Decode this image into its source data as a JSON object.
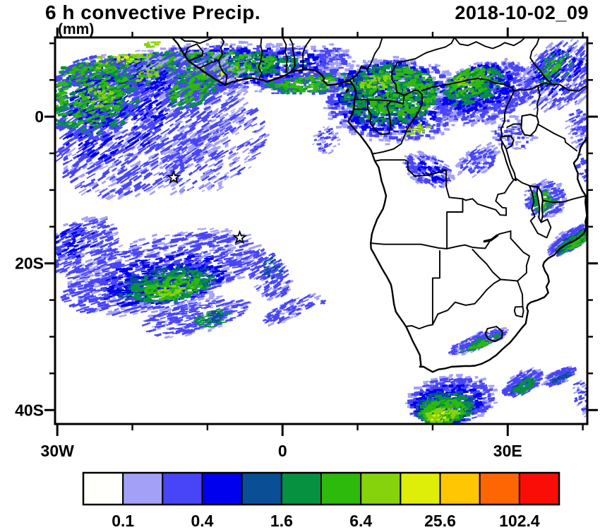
{
  "header": {
    "title": "6 h convective Precip.",
    "units": "(mm)",
    "datetime": "2018-10-02_09"
  },
  "map": {
    "x_axis": {
      "tick_labels": [
        "30W",
        "0",
        "30E"
      ],
      "major_lons": [
        -30,
        0,
        30
      ],
      "minor_lons": [
        -20,
        -10,
        10,
        20,
        40
      ]
    },
    "y_axis": {
      "tick_labels": [
        "0",
        "20S",
        "40S"
      ],
      "major_lats": [
        0,
        -20,
        -40
      ],
      "minor_lats": [
        10,
        5,
        -5,
        -10,
        -15,
        -25,
        -30,
        -35
      ]
    },
    "extent": {
      "lon_min": -30.3,
      "lon_max": 40.6,
      "lat_min": -41.9,
      "lat_max": 10.8
    },
    "markers": [
      {
        "type": "star",
        "lon": -14.5,
        "lat": -8.3
      },
      {
        "type": "star",
        "lon": -5.7,
        "lat": -16.5
      }
    ]
  },
  "colorbar": {
    "labels": [
      "0.1",
      "0.4",
      "1.6",
      "6.4",
      "25.6",
      "102.4"
    ],
    "levels": [
      0.1,
      0.2,
      0.4,
      0.8,
      1.6,
      3.2,
      6.4,
      12.8,
      25.6,
      51.2,
      102.4
    ],
    "colors": [
      "#fffffc",
      "#a3a1f7",
      "#4845f8",
      "#0000ee",
      "#0a4f96",
      "#069140",
      "#2eb90d",
      "#87d30b",
      "#dfee08",
      "#ffc603",
      "#fd6603",
      "#fa0d06"
    ]
  },
  "chart_data": {
    "type": "heatmap",
    "title": "6 h convective Precip.",
    "units": "mm",
    "time": "2018-10-02_09",
    "legend_position": "bottom",
    "region_format": [
      "center_lon",
      "center_lat",
      "radius_lon_deg",
      "radius_lat_deg",
      "streak_angle_deg",
      "color_level_index",
      "speck_count",
      "speck_w_px",
      "speck_h_px"
    ],
    "regions": [
      [
        -10.5,
        6.4,
        20,
        3.6,
        -3,
        1,
        600,
        6,
        3
      ],
      [
        -11,
        6.3,
        19.5,
        3.1,
        -3,
        2,
        700,
        7,
        3.5
      ],
      [
        -12,
        6.5,
        18,
        2.6,
        -3,
        3,
        450,
        6,
        3.5
      ],
      [
        -13,
        6.6,
        17,
        2.2,
        -3,
        4,
        280,
        6,
        3.5
      ],
      [
        -13.5,
        6.8,
        16,
        2.0,
        -2,
        5,
        380,
        6,
        3.5
      ],
      [
        -14.5,
        7.0,
        14,
        1.7,
        -2,
        6,
        300,
        6,
        3.5
      ],
      [
        -20.5,
        7.4,
        5.5,
        1.2,
        -2,
        7,
        100,
        5,
        3
      ],
      [
        -21.5,
        7.6,
        2,
        0.55,
        0,
        8,
        15,
        4,
        3
      ],
      [
        -8.5,
        6.1,
        3,
        0.9,
        0,
        7,
        40,
        5,
        3
      ],
      [
        -8.8,
        6.0,
        1.2,
        0.45,
        0,
        8,
        8,
        4,
        2.5
      ],
      [
        5,
        4.6,
        8,
        1.5,
        -4,
        2,
        240,
        6,
        3
      ],
      [
        5,
        4.6,
        7.5,
        1.2,
        -4,
        5,
        170,
        6,
        3
      ],
      [
        5.5,
        4.6,
        6.5,
        1.0,
        -4,
        6,
        130,
        6,
        3
      ],
      [
        8.5,
        4.4,
        1.6,
        0.6,
        0,
        7,
        24,
        4,
        3
      ],
      [
        8.8,
        4.3,
        0.8,
        0.35,
        0,
        8,
        6,
        4,
        2.5
      ],
      [
        6.5,
        8,
        2.5,
        1.8,
        0,
        1,
        70,
        5,
        3
      ],
      [
        6.6,
        8,
        2.2,
        1.5,
        0,
        2,
        50,
        5,
        3
      ],
      [
        -17,
        -1.0,
        13.5,
        8.5,
        -32,
        1,
        700,
        9,
        2.6
      ],
      [
        -18,
        -1.0,
        13,
        8,
        -32,
        2,
        850,
        11,
        2.6
      ],
      [
        -22,
        0.8,
        8,
        6,
        -32,
        3,
        240,
        9,
        2.6
      ],
      [
        -26,
        1.8,
        4.5,
        4.5,
        -32,
        5,
        55,
        5,
        2.5
      ],
      [
        -9,
        -4.5,
        8,
        4.5,
        -32,
        2,
        200,
        10,
        2.4
      ],
      [
        -9,
        -4.5,
        8.5,
        5,
        -32,
        1,
        170,
        8,
        2.4
      ],
      [
        5.8,
        -3.2,
        1.8,
        1.8,
        -20,
        1,
        45,
        5,
        2.5
      ],
      [
        5.8,
        -3.2,
        1.5,
        1.5,
        -20,
        2,
        28,
        5,
        2.5
      ],
      [
        -25,
        2.5,
        6.5,
        5.5,
        -20,
        2,
        380,
        8,
        3
      ],
      [
        -24.5,
        2,
        4,
        3.5,
        -20,
        3,
        140,
        7,
        3
      ],
      [
        -25,
        2.5,
        6,
        5,
        -20,
        5,
        240,
        7,
        3
      ],
      [
        -25.5,
        3,
        5,
        4.2,
        -20,
        6,
        190,
        7,
        3
      ],
      [
        -24,
        3,
        2.2,
        1.5,
        -20,
        7,
        40,
        5,
        3
      ],
      [
        -12,
        3.5,
        4,
        2.5,
        -25,
        2,
        190,
        7,
        3
      ],
      [
        -12,
        3.5,
        3.6,
        2.2,
        -25,
        5,
        115,
        6,
        3
      ],
      [
        -12.3,
        3.8,
        3,
        1.8,
        -25,
        6,
        75,
        6,
        3
      ],
      [
        -17,
        9.7,
        1.5,
        0.8,
        0,
        7,
        16,
        5,
        3
      ],
      [
        -18,
        5.5,
        1.5,
        0.8,
        -20,
        7,
        22,
        5,
        3
      ],
      [
        15,
        2.2,
        9.5,
        6,
        0,
        1,
        520,
        6,
        4
      ],
      [
        15,
        2.2,
        9,
        5.5,
        0,
        2,
        600,
        6,
        4
      ],
      [
        14.5,
        2.6,
        7.5,
        4.8,
        0,
        3,
        380,
        6,
        4
      ],
      [
        14,
        3.0,
        6.5,
        4.2,
        0,
        4,
        240,
        6,
        4
      ],
      [
        14.5,
        3.1,
        6.2,
        4.0,
        0,
        5,
        340,
        6,
        4
      ],
      [
        15.5,
        3.4,
        5,
        3.2,
        0,
        6,
        220,
        6,
        4
      ],
      [
        12.5,
        4.6,
        2.2,
        1.2,
        0,
        7,
        42,
        5,
        3
      ],
      [
        18,
        -1.7,
        1.8,
        0.5,
        -15,
        7,
        26,
        5,
        3
      ],
      [
        17.5,
        -1.6,
        0.9,
        0.35,
        0,
        8,
        7,
        4,
        2.5
      ],
      [
        17.2,
        -1.55,
        0.4,
        0.2,
        0,
        10,
        3,
        4,
        2.5
      ],
      [
        19.5,
        -7.3,
        3.5,
        2.2,
        25,
        1,
        150,
        6,
        3
      ],
      [
        19.5,
        -7.3,
        3.2,
        2.0,
        25,
        2,
        120,
        6,
        3
      ],
      [
        20,
        -7.5,
        2,
        1.2,
        25,
        3,
        40,
        6,
        3
      ],
      [
        26,
        -6,
        3,
        2,
        -30,
        1,
        95,
        6,
        3
      ],
      [
        26,
        -6,
        2.5,
        1.8,
        -30,
        2,
        75,
        6,
        3
      ],
      [
        27,
        3.2,
        7,
        4.2,
        -18,
        1,
        400,
        6,
        3.5
      ],
      [
        27,
        3.2,
        6.5,
        3.8,
        -18,
        2,
        480,
        6,
        3.5
      ],
      [
        26,
        3.8,
        5,
        3,
        -18,
        3,
        240,
        6,
        3.5
      ],
      [
        25.5,
        4.2,
        4,
        2.4,
        -18,
        5,
        185,
        6,
        3.5
      ],
      [
        25,
        4.6,
        3,
        1.8,
        -18,
        6,
        100,
        6,
        3.5
      ],
      [
        24.5,
        5.2,
        1.6,
        0.9,
        -18,
        7,
        20,
        5,
        3
      ],
      [
        37,
        5.5,
        5.5,
        4.5,
        -40,
        1,
        280,
        7,
        2.6
      ],
      [
        37,
        5.5,
        5,
        4,
        -40,
        2,
        320,
        8,
        2.6
      ],
      [
        36.5,
        6.2,
        3.5,
        2.6,
        -40,
        3,
        85,
        7,
        2.6
      ],
      [
        36.2,
        6.6,
        2.5,
        1.8,
        -40,
        5,
        65,
        5,
        2.6
      ],
      [
        36,
        6.8,
        1.6,
        1.1,
        -40,
        6,
        32,
        5,
        2.6
      ],
      [
        40,
        -2,
        1.8,
        3.2,
        -25,
        1,
        85,
        6,
        2.6
      ],
      [
        40.2,
        -2,
        1.5,
        3,
        -25,
        2,
        75,
        6,
        2.6
      ],
      [
        40.3,
        -7,
        1,
        2,
        -25,
        2,
        42,
        6,
        2.6
      ],
      [
        31,
        -2.2,
        3,
        2.4,
        0,
        1,
        85,
        5,
        3
      ],
      [
        31,
        -2.2,
        2.6,
        2,
        0,
        2,
        60,
        5,
        3
      ],
      [
        35,
        -11.3,
        2.8,
        2.6,
        -20,
        1,
        140,
        6,
        3
      ],
      [
        35,
        -11.3,
        2.5,
        2.3,
        -20,
        2,
        150,
        6,
        3
      ],
      [
        34.8,
        -11.3,
        1.6,
        1.6,
        -20,
        5,
        65,
        6,
        3
      ],
      [
        34.7,
        -11.2,
        1,
        1,
        -20,
        6,
        28,
        5,
        3
      ],
      [
        38.5,
        -16.6,
        3.8,
        1.4,
        -32,
        1,
        130,
        7,
        2.6
      ],
      [
        38.6,
        -16.7,
        3.5,
        1.2,
        -32,
        2,
        200,
        8,
        2.6
      ],
      [
        38.8,
        -16.9,
        2.8,
        0.8,
        -32,
        4,
        65,
        7,
        2.6
      ],
      [
        38.9,
        -17.0,
        2.6,
        0.7,
        -32,
        5,
        85,
        7,
        2.6
      ],
      [
        39.2,
        -17.2,
        1.4,
        0.45,
        -32,
        6,
        28,
        6,
        2.6
      ],
      [
        -16,
        -21.3,
        13.5,
        5.2,
        -14,
        1,
        580,
        8,
        2.6
      ],
      [
        -16.5,
        -21.4,
        13,
        4.7,
        -14,
        2,
        750,
        10,
        2.6
      ],
      [
        -16,
        -22.3,
        8.5,
        3.2,
        -10,
        3,
        340,
        8,
        2.8
      ],
      [
        -15.5,
        -22.8,
        6.5,
        2.4,
        -10,
        4,
        185,
        7,
        2.8
      ],
      [
        -15,
        -23.1,
        5.8,
        2.1,
        -10,
        5,
        240,
        7,
        3
      ],
      [
        -14.6,
        -23.4,
        3.8,
        1.5,
        -10,
        6,
        130,
        6,
        3
      ],
      [
        -14.9,
        -23.7,
        1.8,
        0.8,
        -10,
        7,
        38,
        5,
        3
      ],
      [
        -26.5,
        -17.8,
        5.5,
        3.8,
        -22,
        1,
        150,
        8,
        2.4
      ],
      [
        -26.5,
        -17.8,
        5,
        3.5,
        -22,
        2,
        240,
        9,
        2.4
      ],
      [
        -27.5,
        -17,
        3,
        2,
        -22,
        3,
        55,
        8,
        2.4
      ],
      [
        -1.8,
        -21.5,
        2.5,
        3.9,
        -30,
        1,
        85,
        7,
        2.4
      ],
      [
        -1.8,
        -21.5,
        2.2,
        3.6,
        -30,
        2,
        140,
        8,
        2.4
      ],
      [
        -1.5,
        -20.5,
        1.2,
        1.6,
        -30,
        4,
        28,
        6,
        2.4
      ],
      [
        -11.5,
        -27.3,
        7.5,
        2.3,
        -12,
        1,
        140,
        8,
        2.4
      ],
      [
        -11.5,
        -27.3,
        7,
        2,
        -12,
        2,
        220,
        9,
        2.4
      ],
      [
        -9.3,
        -27.5,
        2.2,
        1.1,
        -12,
        5,
        65,
        7,
        2.4
      ],
      [
        -9.0,
        -27.4,
        1.4,
        0.7,
        -12,
        4,
        32,
        6,
        2.4
      ],
      [
        1,
        -26.3,
        4.1,
        1.3,
        -24,
        1,
        55,
        7,
        2.2
      ],
      [
        1,
        -26.3,
        3.8,
        1.1,
        -24,
        2,
        85,
        8,
        2.2
      ],
      [
        5.4,
        -25.3,
        0.5,
        0.3,
        -20,
        2,
        6,
        5,
        2.2
      ],
      [
        26,
        -30.7,
        4.2,
        1.1,
        -21,
        1,
        105,
        6,
        2.4
      ],
      [
        26,
        -30.7,
        4,
        0.95,
        -21,
        2,
        160,
        7,
        2.4
      ],
      [
        26.3,
        -30.9,
        2.8,
        0.5,
        -21,
        5,
        55,
        6,
        2.4
      ],
      [
        26.5,
        -31.0,
        1.6,
        0.35,
        -21,
        6,
        24,
        6,
        2.4
      ],
      [
        22.5,
        -38.6,
        6,
        3.4,
        -8,
        1,
        260,
        7,
        3
      ],
      [
        22.5,
        -38.7,
        5.6,
        3.1,
        -8,
        2,
        400,
        8,
        3
      ],
      [
        22,
        -39.2,
        4.6,
        2.6,
        -8,
        3,
        220,
        7,
        3
      ],
      [
        21.8,
        -39.5,
        4,
        2.2,
        -8,
        4,
        140,
        7,
        3
      ],
      [
        21.8,
        -39.8,
        3.8,
        2.0,
        -8,
        5,
        200,
        7,
        3
      ],
      [
        21.5,
        -40.2,
        3,
        1.5,
        -8,
        6,
        150,
        6,
        3
      ],
      [
        21.2,
        -40.6,
        2.2,
        1.0,
        -8,
        7,
        65,
        6,
        3
      ],
      [
        20.8,
        -40.8,
        1.1,
        0.5,
        -8,
        8,
        10,
        4,
        2.5
      ],
      [
        32,
        -36.3,
        3,
        1.5,
        -28,
        1,
        95,
        7,
        2.4
      ],
      [
        32,
        -36.4,
        2.8,
        1.3,
        -28,
        2,
        150,
        8,
        2.4
      ],
      [
        32.2,
        -36.6,
        1.8,
        0.8,
        -28,
        4,
        46,
        7,
        2.4
      ],
      [
        32.3,
        -36.7,
        1.5,
        0.6,
        -28,
        5,
        55,
        7,
        2.4
      ],
      [
        37,
        -35.3,
        2.4,
        1.0,
        -24,
        1,
        55,
        7,
        2.4
      ],
      [
        37,
        -35.4,
        2.2,
        0.9,
        -24,
        2,
        85,
        7,
        2.4
      ],
      [
        37.2,
        -35.5,
        1.2,
        0.5,
        -24,
        4,
        24,
        6,
        2.4
      ],
      [
        40.4,
        -38.5,
        1.4,
        2.9,
        -28,
        1,
        42,
        6,
        2.4
      ],
      [
        40.4,
        -38.5,
        1.2,
        2.6,
        -28,
        2,
        65,
        6,
        2.4
      ]
    ]
  }
}
